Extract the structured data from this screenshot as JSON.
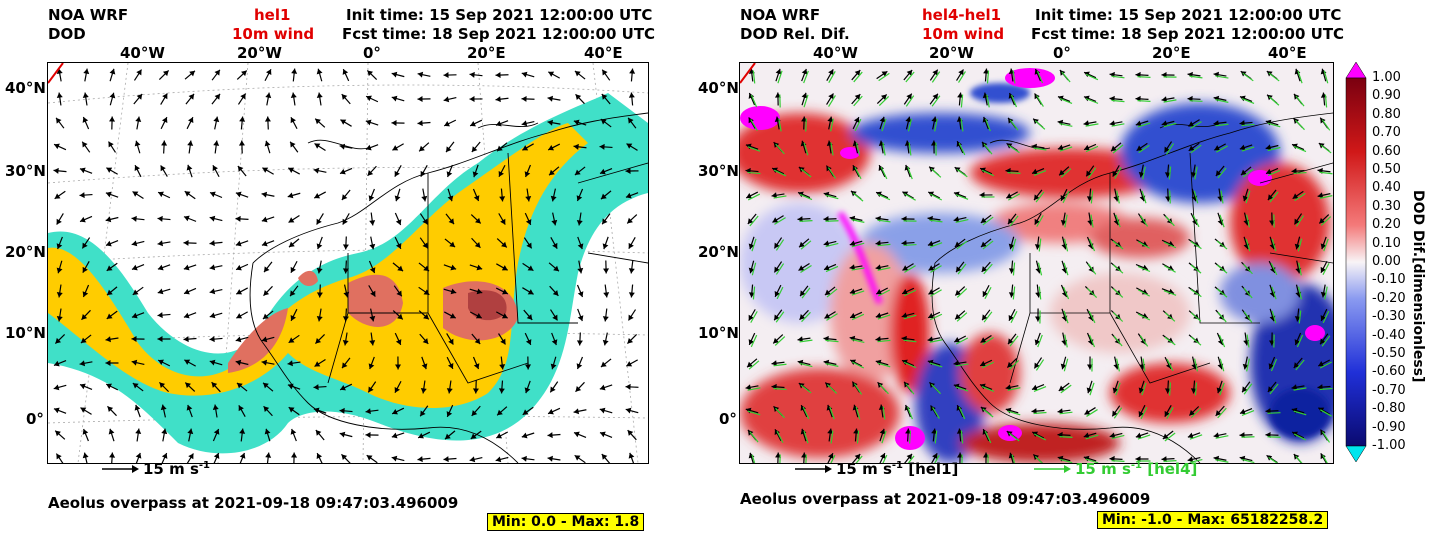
{
  "left": {
    "model": "NOA WRF",
    "variable": "DOD",
    "run": "hel1",
    "field2": "10m wind",
    "init_time": "Init time: 15 Sep 2021 12:00:00 UTC",
    "fcst_time": "Fcst time: 18 Sep 2021 12:00:00 UTC",
    "lon_ticks": [
      "40°W",
      "20°W",
      "0°",
      "20°E",
      "40°E"
    ],
    "lat_ticks": [
      "40°N",
      "30°N",
      "20°N",
      "10°N",
      "0°"
    ],
    "wind_key": "15 m s",
    "wind_key_sup": "-1",
    "overpass": "Aeolus overpass at 2021-09-18 09:47:03.496009",
    "minmax": "Min: 0.0 - Max: 1.8"
  },
  "right": {
    "model": "NOA WRF",
    "variable": "DOD Rel. Dif.",
    "run": "hel4-hel1",
    "field2": "10m wind",
    "init_time": "Init time: 15 Sep 2021 12:00:00 UTC",
    "fcst_time": "Fcst time: 18 Sep 2021 12:00:00 UTC",
    "lon_ticks": [
      "40°W",
      "20°W",
      "0°",
      "20°E",
      "40°E"
    ],
    "lat_ticks": [
      "40°N",
      "30°N",
      "20°N",
      "10°N",
      "0°"
    ],
    "wind_key1": "15 m s",
    "wind_key1_sup": "-1",
    "wind_key1_run": " [hel1]",
    "wind_key2": "15 m s",
    "wind_key2_sup": "-1",
    "wind_key2_run": " [hel4]",
    "overpass": "Aeolus overpass at 2021-09-18 09:47:03.496009",
    "minmax": "Min: -1.0 - Max: 65182258.2"
  },
  "colorbar": {
    "title": "DOD Dif.[dimensionless]",
    "labels": [
      "1.00",
      "0.90",
      "0.80",
      "0.70",
      "0.60",
      "0.50",
      "0.40",
      "0.30",
      "0.20",
      "0.10",
      "0.00",
      "-0.10",
      "-0.20",
      "-0.30",
      "-0.40",
      "-0.50",
      "-0.60",
      "-0.70",
      "-0.80",
      "-0.90",
      "-1.00"
    ],
    "over_color": "#ff00ff",
    "under_color": "#00e5ee"
  },
  "colors": {
    "dust_low": "#40e0c8",
    "dust_mid": "#ffcc00",
    "dust_high": "#e07060",
    "dust_max": "#b04040",
    "wind_hel1": "#000000",
    "wind_hel4": "#33cc33",
    "title_red": "#e00000",
    "stat_bg": "#ffff00"
  }
}
